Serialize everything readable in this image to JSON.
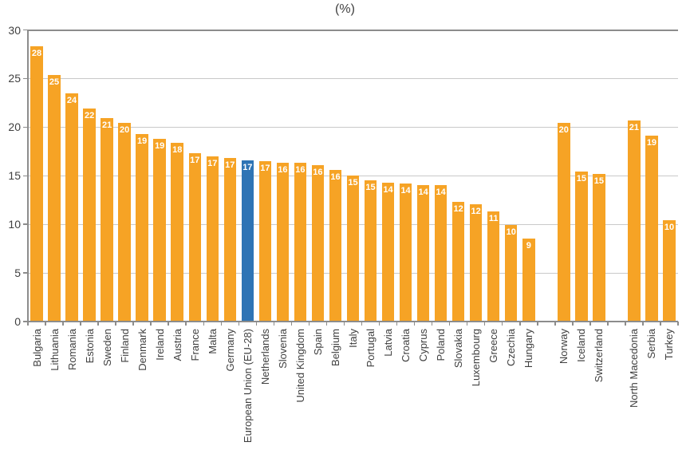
{
  "chart_data": {
    "type": "bar",
    "title": "(%)",
    "xlabel": "",
    "ylabel": "",
    "ylim": [
      0,
      30
    ],
    "yticks": [
      0,
      5,
      10,
      15,
      20,
      25,
      30
    ],
    "grid": true,
    "legend": "none",
    "bar_color": "#F6A325",
    "highlight_color": "#2E74B5",
    "highlight_category": "European Union (EU-28)",
    "gridline_color": "#C9C9C9",
    "axis_color": "#8C8C8C",
    "text_color": "#404040",
    "value_label_color": "#FFFFFF",
    "gap_after": [
      "Hungary",
      "Switzerland"
    ],
    "points": [
      {
        "category": "Bulgaria",
        "label": "28",
        "value": 28.3
      },
      {
        "category": "Lithuania",
        "label": "25",
        "value": 25.4
      },
      {
        "category": "Romania",
        "label": "24",
        "value": 23.5
      },
      {
        "category": "Estonia",
        "label": "22",
        "value": 21.9
      },
      {
        "category": "Sweden",
        "label": "21",
        "value": 20.9
      },
      {
        "category": "Finland",
        "label": "20",
        "value": 20.4
      },
      {
        "category": "Denmark",
        "label": "19",
        "value": 19.3
      },
      {
        "category": "Ireland",
        "label": "19",
        "value": 18.8
      },
      {
        "category": "Austria",
        "label": "18",
        "value": 18.4
      },
      {
        "category": "France",
        "label": "17",
        "value": 17.3
      },
      {
        "category": "Malta",
        "label": "17",
        "value": 17.0
      },
      {
        "category": "Germany",
        "label": "17",
        "value": 16.8
      },
      {
        "category": "European Union (EU-28)",
        "label": "17",
        "value": 16.6
      },
      {
        "category": "Netherlands",
        "label": "17",
        "value": 16.5
      },
      {
        "category": "Slovenia",
        "label": "16",
        "value": 16.3
      },
      {
        "category": "United Kingdom",
        "label": "16",
        "value": 16.3
      },
      {
        "category": "Spain",
        "label": "16",
        "value": 16.1
      },
      {
        "category": "Belgium",
        "label": "16",
        "value": 15.6
      },
      {
        "category": "Italy",
        "label": "15",
        "value": 15.0
      },
      {
        "category": "Portugal",
        "label": "15",
        "value": 14.5
      },
      {
        "category": "Latvia",
        "label": "14",
        "value": 14.3
      },
      {
        "category": "Croatia",
        "label": "14",
        "value": 14.2
      },
      {
        "category": "Cyprus",
        "label": "14",
        "value": 14.0
      },
      {
        "category": "Poland",
        "label": "14",
        "value": 14.0
      },
      {
        "category": "Slovakia",
        "label": "12",
        "value": 12.3
      },
      {
        "category": "Luxembourg",
        "label": "12",
        "value": 12.1
      },
      {
        "category": "Greece",
        "label": "11",
        "value": 11.3
      },
      {
        "category": "Czechia",
        "label": "10",
        "value": 9.9
      },
      {
        "category": "Hungary",
        "label": "9",
        "value": 8.5
      },
      {
        "category": "Norway",
        "label": "20",
        "value": 20.4
      },
      {
        "category": "Iceland",
        "label": "15",
        "value": 15.4
      },
      {
        "category": "Switzerland",
        "label": "15",
        "value": 15.2
      },
      {
        "category": "North Macedonia",
        "label": "21",
        "value": 20.7
      },
      {
        "category": "Serbia",
        "label": "19",
        "value": 19.1
      },
      {
        "category": "Turkey",
        "label": "10",
        "value": 10.4
      }
    ]
  }
}
